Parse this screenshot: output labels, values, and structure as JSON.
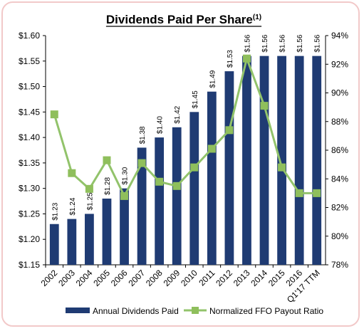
{
  "colors": {
    "bar": "#1f3b73",
    "line": "#92c36b",
    "marker": "#8fbf5c",
    "frame": "#f2c9c9"
  },
  "chart_data": {
    "type": "bar",
    "title": "Dividends Paid Per Share",
    "title_superscript": "(1)",
    "categories": [
      "2002",
      "2003",
      "2004",
      "2005",
      "2006",
      "2007",
      "2008",
      "2009",
      "2010",
      "2011",
      "2012",
      "2013",
      "2014",
      "2015",
      "2016",
      "Q1'17 TTM"
    ],
    "series": [
      {
        "name": "Annual Dividends Paid",
        "type": "bar",
        "axis": "left",
        "values": [
          1.23,
          1.24,
          1.25,
          1.28,
          1.3,
          1.38,
          1.4,
          1.42,
          1.45,
          1.49,
          1.53,
          1.56,
          1.56,
          1.56,
          1.56,
          1.56
        ],
        "labels": [
          "$1.23",
          "$1.24",
          "$1.25",
          "$1.28",
          "$1.30",
          "$1.38",
          "$1.40",
          "$1.42",
          "$1.45",
          "$1.49",
          "$1.53",
          "$1.56",
          "$1.56",
          "$1.56",
          "$1.56",
          "$1.56"
        ]
      },
      {
        "name": "Normalized FFO Payout Ratio",
        "type": "line",
        "axis": "right",
        "values": [
          88.5,
          84.4,
          83.3,
          85.3,
          82.8,
          85.1,
          83.8,
          83.5,
          84.8,
          86.1,
          87.4,
          92.4,
          89.1,
          84.8,
          83.0,
          83.0
        ]
      }
    ],
    "y_left": {
      "min": 1.15,
      "max": 1.6,
      "step": 0.05,
      "ticks": [
        "$1.15",
        "$1.20",
        "$1.25",
        "$1.30",
        "$1.35",
        "$1.40",
        "$1.45",
        "$1.50",
        "$1.55",
        "$1.60"
      ]
    },
    "y_right": {
      "min": 78,
      "max": 94,
      "step": 2,
      "ticks": [
        "78%",
        "80%",
        "82%",
        "84%",
        "86%",
        "88%",
        "90%",
        "92%",
        "94%"
      ]
    },
    "grid": false,
    "legend_position": "bottom"
  }
}
